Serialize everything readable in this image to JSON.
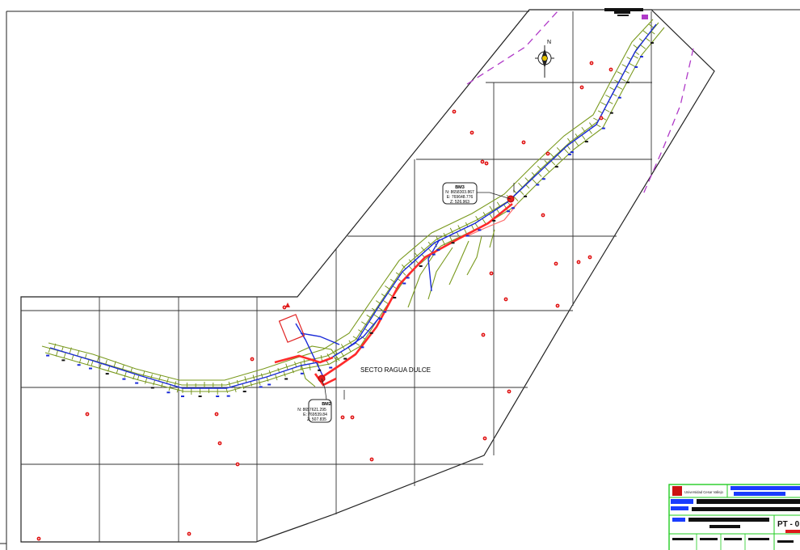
{
  "map": {
    "sector_label": "SECTO RAGUA DULCE",
    "north_label": "N",
    "points": [
      {
        "id": "BM3",
        "label_lines": [
          "BM3",
          "N: 8658303.867",
          "E: 769648.776",
          "Z: 526.963"
        ]
      },
      {
        "id": "BM2",
        "label_lines": [
          "BM2",
          "N: 8657621.295",
          "E: 769539.84",
          "Z: 507.835"
        ]
      }
    ]
  },
  "title_block": {
    "institution": "Universidad Cesar Vallejo",
    "sheet_code": "PT - 0",
    "colors": {
      "frame": "#22cc22",
      "accent_blue": "#1a3cff",
      "accent_red": "#dd1a1a",
      "logo_red": "#cc1111"
    }
  },
  "colors": {
    "grid": "#222222",
    "road_axis": "#ff2a2a",
    "edge_blue": "#1a2ad8",
    "contour_green": "#7a9a1e",
    "dashed_purple": "#b03ac8",
    "marker_red": "#e01010"
  }
}
